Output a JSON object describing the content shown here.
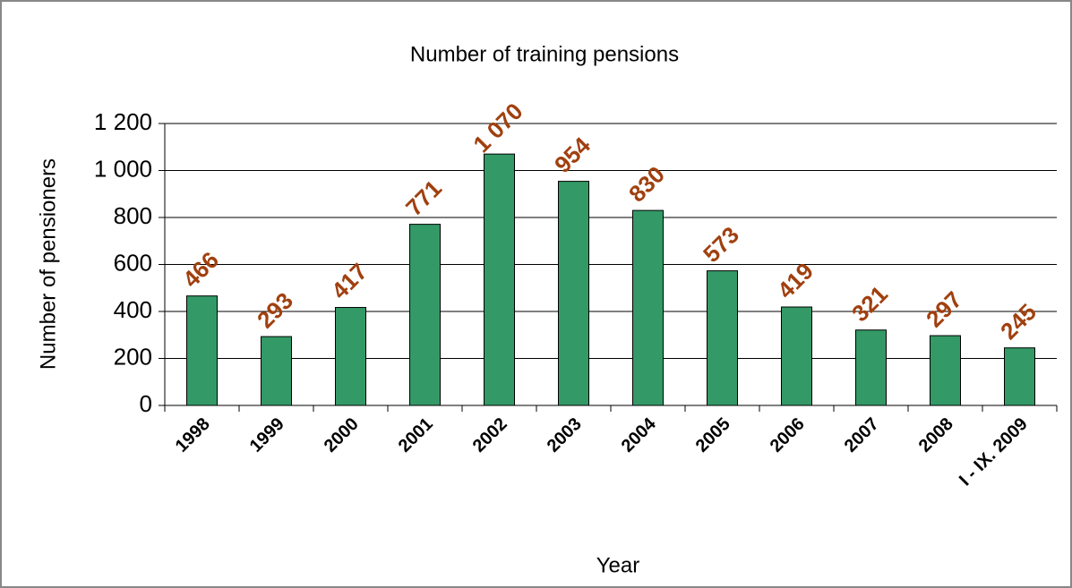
{
  "chart_data": {
    "type": "bar",
    "title": "Number of training pensions",
    "x_label": "Year",
    "y_label": "Number of pensioners",
    "categories": [
      "1998",
      "1999",
      "2000",
      "2001",
      "2002",
      "2003",
      "2004",
      "2005",
      "2006",
      "2007",
      "2008",
      "I - IX. 2009"
    ],
    "values": [
      466,
      293,
      417,
      771,
      1070,
      954,
      830,
      573,
      419,
      321,
      297,
      245
    ],
    "value_labels": [
      "466",
      "293",
      "417",
      "771",
      "1 070",
      "954",
      "830",
      "573",
      "419",
      "321",
      "297",
      "245"
    ],
    "color": "#339966",
    "label_color": "#a0400f",
    "ylim": [
      0,
      1200
    ],
    "yticks": [
      0,
      200,
      400,
      600,
      800,
      {
        "value": 1000,
        "label": "1 000"
      },
      {
        "value": 1200,
        "label": "1 200"
      }
    ],
    "grid": true
  }
}
